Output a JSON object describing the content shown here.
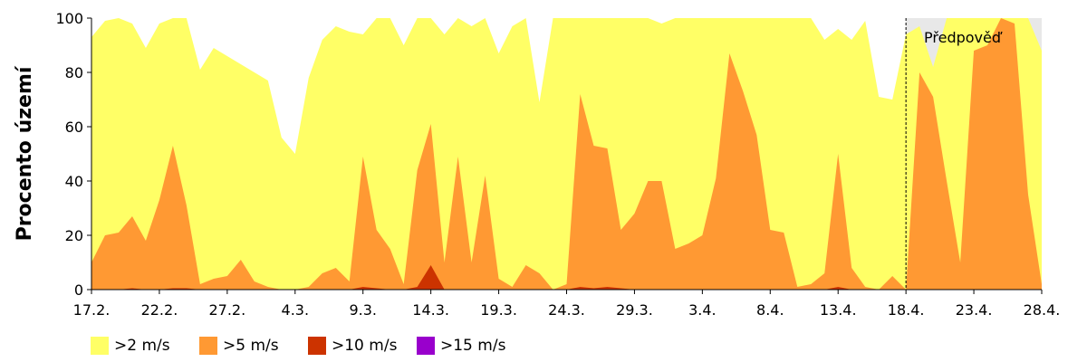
{
  "chart_data": {
    "type": "area",
    "ylabel": "Procento území",
    "ylim": [
      0,
      100
    ],
    "yticks": [
      0,
      20,
      40,
      60,
      80,
      100
    ],
    "x_tick_labels": [
      "17.2.",
      "22.2.",
      "27.2.",
      "4.3.",
      "9.3.",
      "14.3.",
      "19.3.",
      "24.3.",
      "29.3.",
      "3.4.",
      "8.4.",
      "13.4.",
      "18.4.",
      "23.4.",
      "28.4."
    ],
    "x_tick_index": [
      0,
      5,
      10,
      15,
      20,
      25,
      30,
      35,
      40,
      45,
      50,
      55,
      60,
      65,
      70
    ],
    "x_count": 71,
    "forecast_start_index": 60,
    "annotation": "Předpověď",
    "series": [
      {
        "name": ">2 m/s",
        "color": "#ffff66",
        "values": [
          93,
          99,
          100,
          98,
          89,
          98,
          100,
          100,
          81,
          89,
          86,
          83,
          80,
          77,
          56,
          50,
          78,
          92,
          97,
          95,
          94,
          100,
          100,
          90,
          100,
          100,
          94,
          100,
          97,
          100,
          87,
          97,
          100,
          69,
          100,
          100,
          100,
          100,
          100,
          100,
          100,
          100,
          98,
          100,
          100,
          100,
          100,
          100,
          100,
          100,
          100,
          100,
          100,
          100,
          92,
          96,
          92,
          99,
          71,
          70,
          94,
          97,
          82,
          100,
          100,
          100,
          100,
          100,
          100,
          100,
          88
        ]
      },
      {
        "name": ">5 m/s",
        "color": "#ff9933",
        "values": [
          10,
          20,
          21,
          27,
          18,
          33,
          53,
          31,
          2,
          4,
          5,
          11,
          3,
          1,
          0,
          0,
          1,
          6,
          8,
          3,
          49,
          22,
          15,
          2,
          44,
          61,
          10,
          49,
          10,
          42,
          4,
          1,
          9,
          6,
          0,
          2,
          72,
          53,
          52,
          22,
          28,
          40,
          40,
          15,
          17,
          20,
          41,
          87,
          73,
          57,
          22,
          21,
          1,
          2,
          6,
          50,
          8,
          1,
          0,
          5,
          0,
          80,
          71,
          40,
          10,
          88,
          90,
          100,
          98,
          35,
          2
        ]
      },
      {
        "name": ">10 m/s",
        "color": "#cc3300",
        "values": [
          0,
          0,
          0,
          0.5,
          0,
          0,
          0.5,
          0.5,
          0,
          0,
          0,
          0,
          0,
          0,
          0,
          0,
          0,
          0,
          0,
          0,
          1,
          0.5,
          0,
          0,
          1,
          9,
          0,
          0,
          0,
          0,
          0,
          0,
          0,
          0,
          0,
          0,
          1,
          0.5,
          1,
          0.5,
          0,
          0,
          0,
          0,
          0,
          0,
          0,
          0,
          0,
          0,
          0,
          0,
          0,
          0,
          0,
          1,
          0,
          0,
          0,
          0,
          0,
          0,
          0,
          0,
          0,
          0,
          0,
          0,
          0,
          0,
          0
        ]
      },
      {
        "name": ">15 m/s",
        "color": "#9900cc",
        "values": [
          0,
          0,
          0,
          0,
          0,
          0,
          0,
          0,
          0,
          0,
          0,
          0,
          0,
          0,
          0,
          0,
          0,
          0,
          0,
          0,
          0,
          0,
          0,
          0,
          0,
          0,
          0,
          0,
          0,
          0,
          0,
          0,
          0,
          0,
          0,
          0,
          0,
          0,
          0,
          0,
          0,
          0,
          0,
          0,
          0,
          0,
          0,
          0,
          0,
          0,
          0,
          0,
          0,
          0,
          0,
          0,
          0,
          0,
          0,
          0,
          0,
          0,
          0,
          0,
          0,
          0,
          0,
          0,
          0,
          0,
          0
        ]
      }
    ],
    "forecast_background_color": "#e8e8e8",
    "grid": false,
    "legend_position": "bottom"
  }
}
